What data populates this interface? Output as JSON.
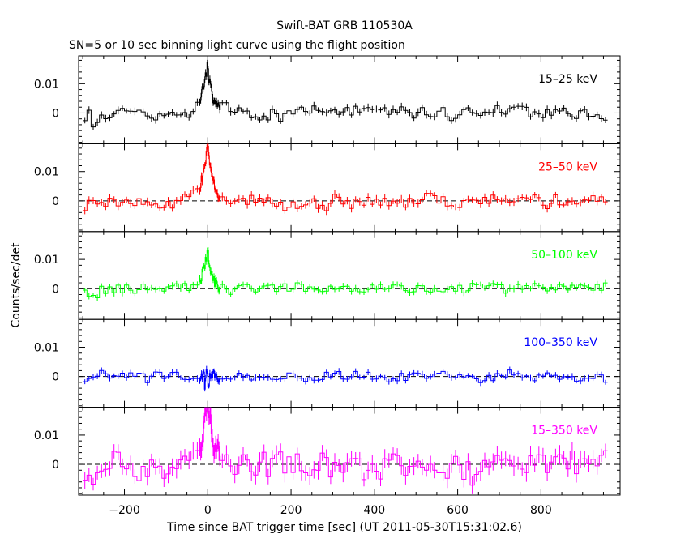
{
  "chart_data": {
    "type": "line",
    "title": "Swift-BAT GRB 110530A",
    "subtitle": "SN=5 or 10 sec binning light curve using the flight position",
    "xlabel": "Time since BAT trigger time [sec] (UT 2011-05-30T15:31:02.6)",
    "ylabel": "Counts/sec/det",
    "xlim": [
      -310,
      990
    ],
    "x_ticks": [
      -200,
      0,
      200,
      400,
      600,
      800
    ],
    "x_tick_labels": [
      "−200",
      "0",
      "200",
      "400",
      "600",
      "800"
    ],
    "y_tick_labels": [
      "0",
      "0.01"
    ],
    "grid": false,
    "panels": [
      {
        "name": "15–25 keV",
        "color": "#000000",
        "ylim": [
          -0.0105,
          0.0195
        ],
        "noise": 0.0018,
        "peak": 0.015,
        "seed": 11
      },
      {
        "name": "25–50 keV",
        "color": "#ff0000",
        "ylim": [
          -0.0105,
          0.0195
        ],
        "noise": 0.0019,
        "peak": 0.018,
        "seed": 23
      },
      {
        "name": "50–100 keV",
        "color": "#00ff00",
        "ylim": [
          -0.0105,
          0.0195
        ],
        "noise": 0.0016,
        "peak": 0.011,
        "seed": 37
      },
      {
        "name": "100–350 keV",
        "color": "#0000ff",
        "ylim": [
          -0.0105,
          0.0195
        ],
        "noise": 0.0015,
        "peak": 0.0,
        "seed": 41
      },
      {
        "name": "15–350 keV",
        "color": "#ff00ff",
        "ylim": [
          -0.0105,
          0.0195
        ],
        "noise": 0.0042,
        "peak": 0.024,
        "seed": 53
      }
    ]
  }
}
